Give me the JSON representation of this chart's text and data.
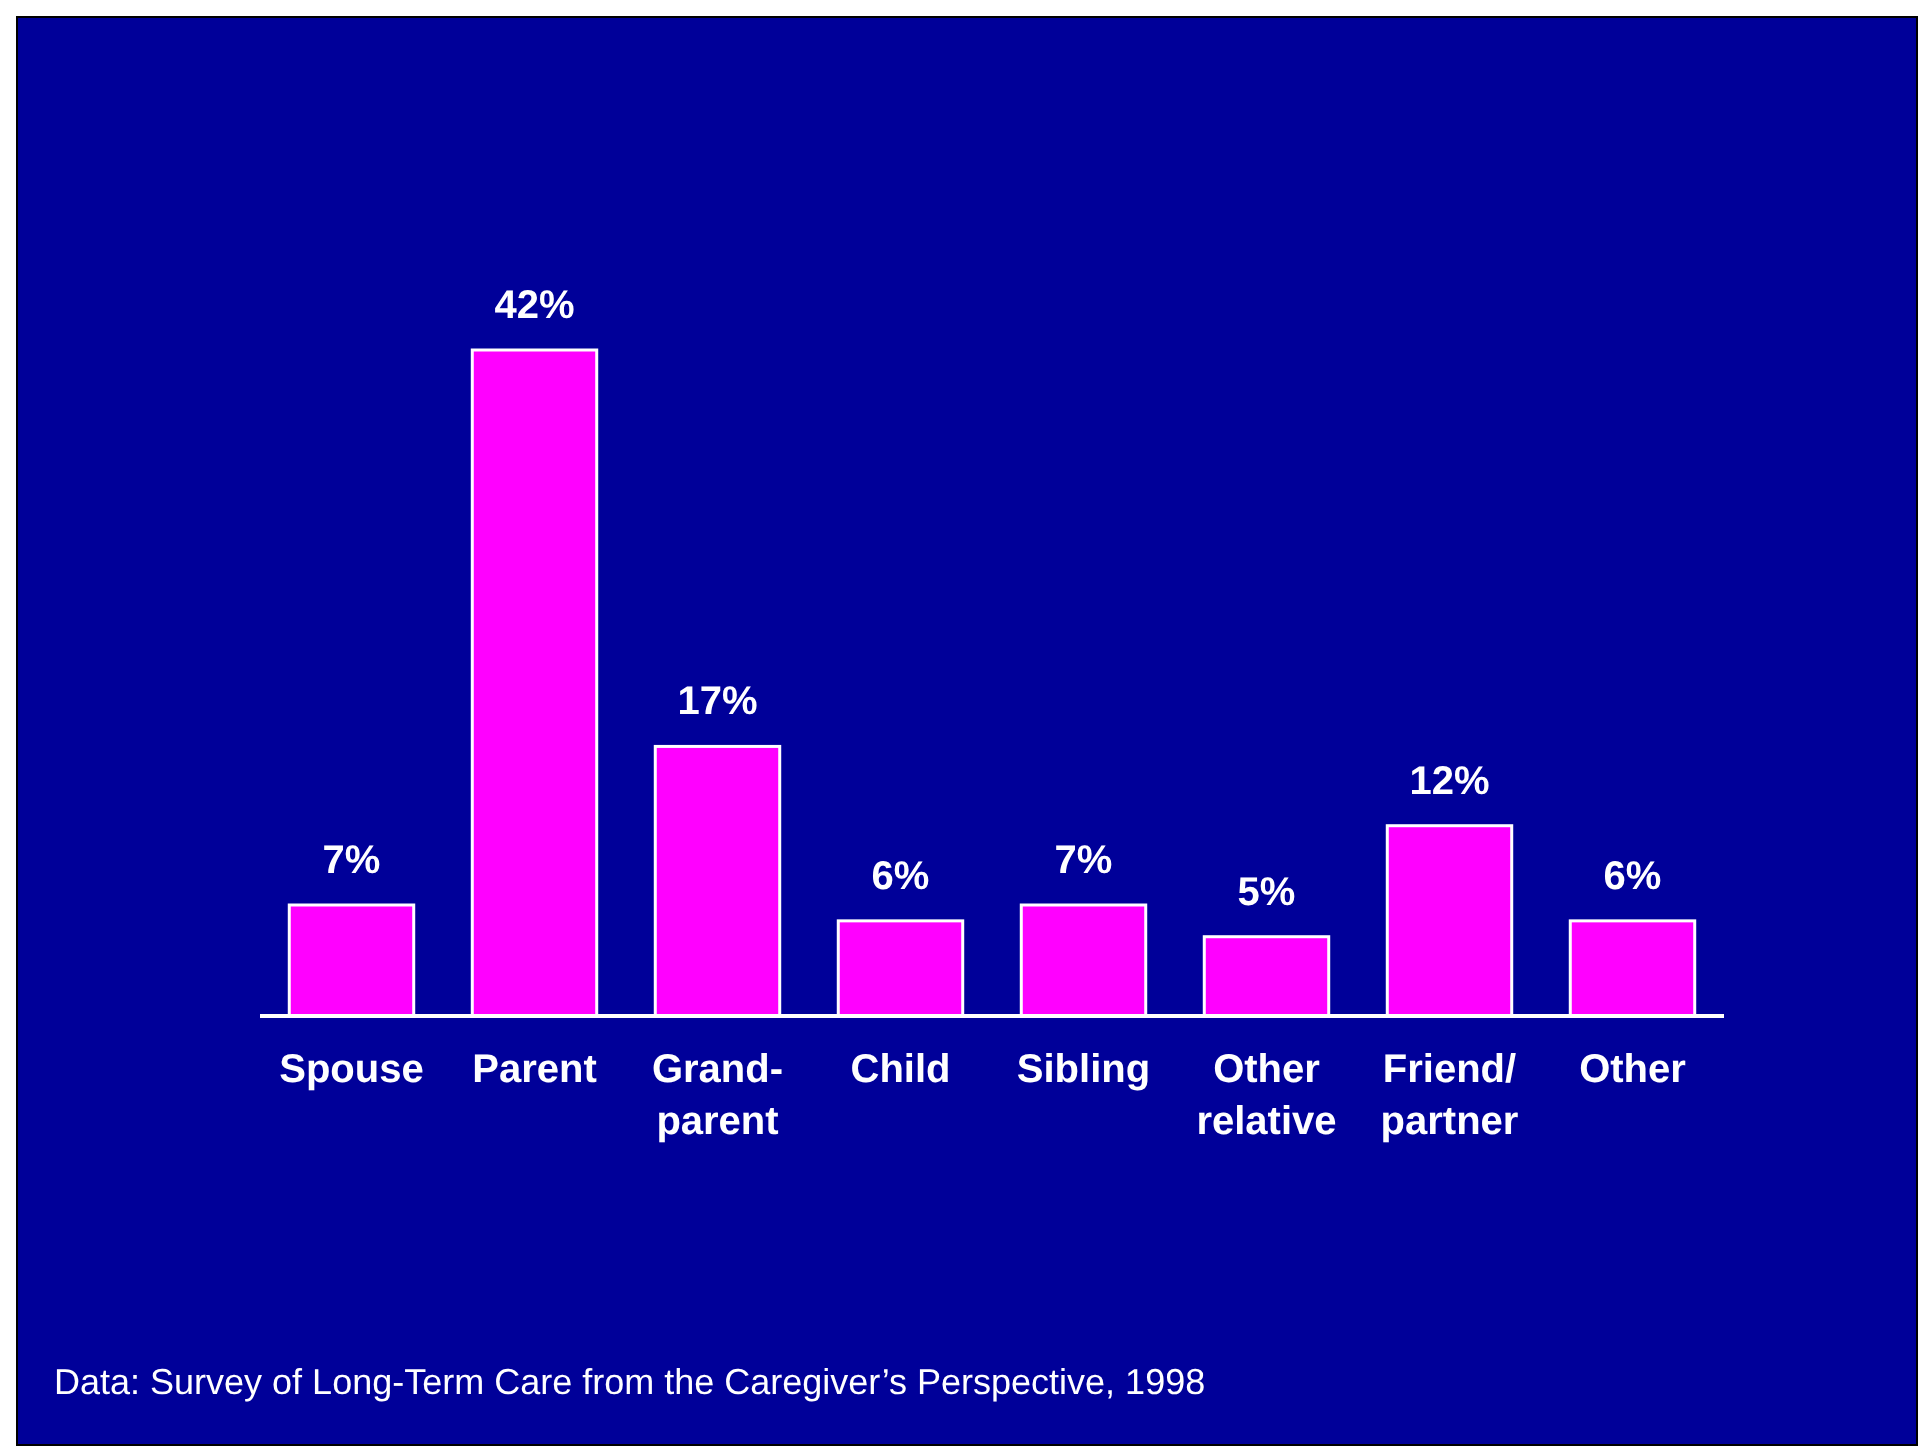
{
  "chart_data": {
    "type": "bar",
    "categories": [
      "Spouse",
      "Parent",
      "Grand-parent",
      "Child",
      "Sibling",
      "Other relative",
      "Friend/partner",
      "Other"
    ],
    "values": [
      7,
      42,
      17,
      6,
      7,
      5,
      12,
      6
    ],
    "value_labels": [
      "7%",
      "42%",
      "17%",
      "6%",
      "7%",
      "5%",
      "12%",
      "6%"
    ],
    "color": "#ff00ff",
    "annotations": [
      "Data: Survey of Long-Term Care from the Caregiver’s Perspective, 1998"
    ]
  }
}
